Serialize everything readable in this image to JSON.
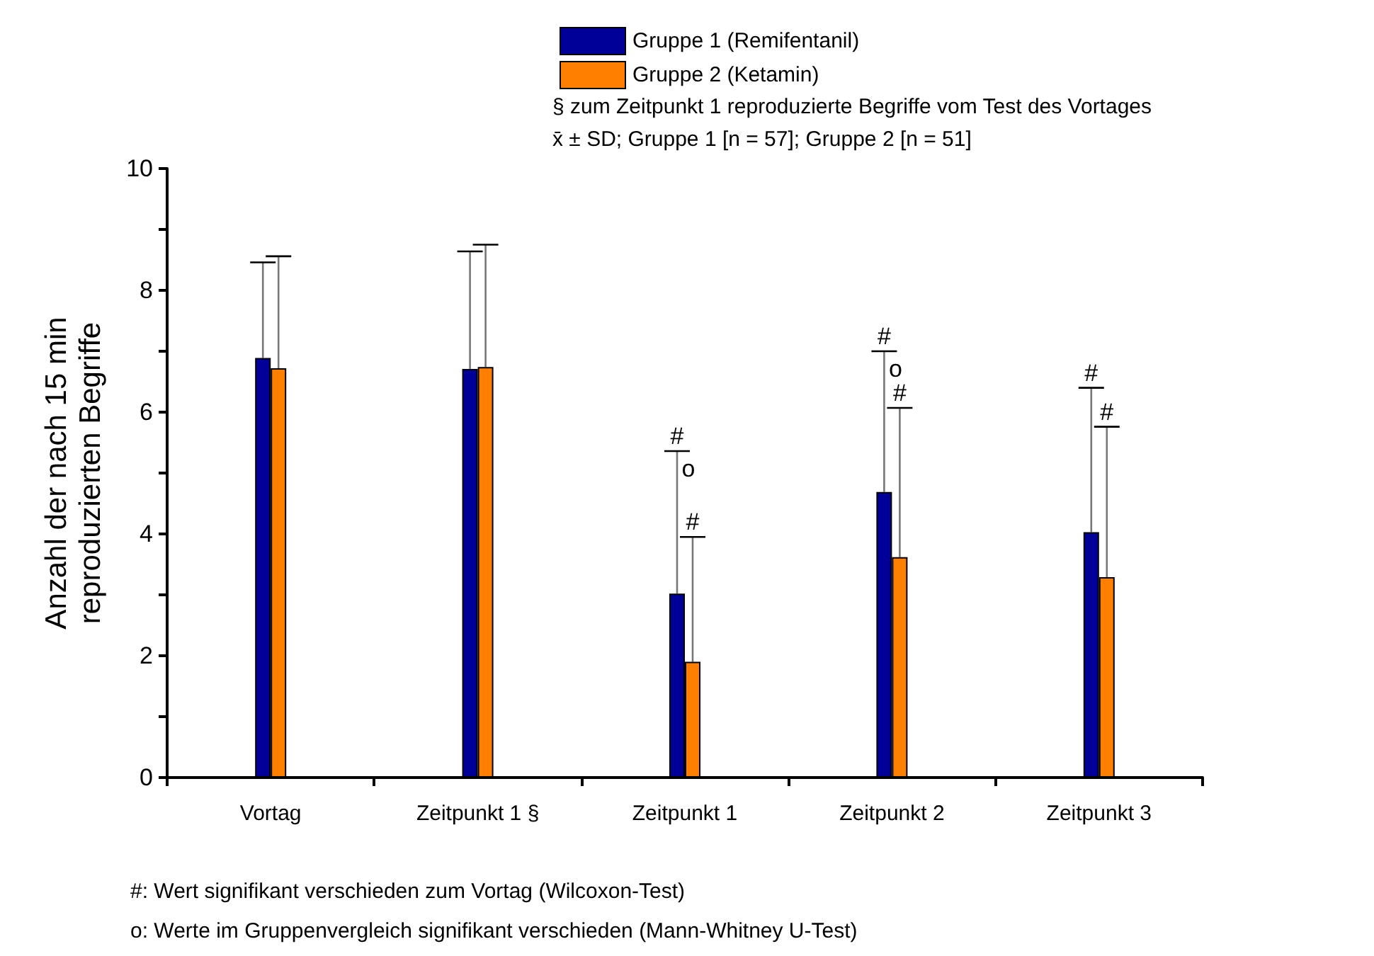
{
  "chart_data": {
    "type": "bar",
    "ylabel": "Anzahl der nach 15 min\nreproduzierten Begriffe",
    "categories": [
      "Vortag",
      "Zeitpunkt 1 §",
      "Zeitpunkt 1",
      "Zeitpunkt 2",
      "Zeitpunkt 3"
    ],
    "series": [
      {
        "name": "Gruppe 1 (Remifentanil)",
        "color": "#000099",
        "values": [
          6.89,
          6.71,
          3.02,
          4.69,
          4.03
        ],
        "errors": [
          [
            6.89,
            8.46
          ],
          [
            6.71,
            8.64
          ],
          [
            3.02,
            5.36
          ],
          [
            4.69,
            7.0
          ],
          [
            4.03,
            6.4
          ]
        ]
      },
      {
        "name": "Gruppe 2 (Ketamin)",
        "color": "#ff8000",
        "values": [
          6.72,
          6.74,
          1.9,
          3.62,
          3.29
        ],
        "errors": [
          [
            6.72,
            8.56
          ],
          [
            6.74,
            8.75
          ],
          [
            1.9,
            3.95
          ],
          [
            3.62,
            6.07
          ],
          [
            3.29,
            5.76
          ]
        ]
      }
    ],
    "ylim": [
      0,
      10
    ],
    "yticks": [
      0,
      {
        "value": 1,
        "label": null
      },
      2,
      {
        "value": 3,
        "label": null
      },
      4,
      {
        "value": 5,
        "label": null
      },
      6,
      {
        "value": 7,
        "label": null
      },
      8,
      {
        "value": 9,
        "label": null
      },
      10
    ],
    "grid": false,
    "legend": "top right",
    "annotations": [
      "§ zum Zeitpunkt 1 reproduzierte Begriffe vom Test des Vortages",
      "x̄ ± SD; Gruppe 1 [n = 57]; Gruppe 2 [n = 51]",
      "#: Wert signifikant verschieden zum Vortag (Wilcoxon-Test)",
      "o: Werte im Gruppenvergleich signifikant verschieden (Mann-Whitney U-Test)",
      {
        "text": "#",
        "x": "Zeitpunkt 1",
        "y": 5.36
      },
      "o",
      {
        "text": "#",
        "x": "Zeitpunkt 1",
        "y": 3.95
      },
      {
        "text": "#",
        "x": "Zeitpunkt 2",
        "y": 7.0
      },
      "o",
      {
        "text": "#",
        "x": "Zeitpunkt 2",
        "y": 6.07
      },
      {
        "text": "#",
        "x": "Zeitpunkt 3",
        "y": 6.4
      },
      {
        "text": "#",
        "x": "Zeitpunkt 3",
        "y": 5.76
      }
    ]
  }
}
